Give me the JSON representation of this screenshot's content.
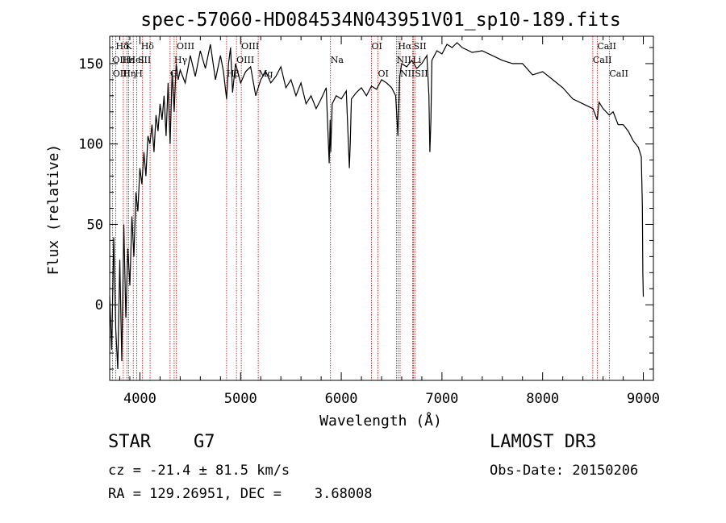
{
  "chart_data": {
    "type": "line",
    "title": "spec-57060-HD084534N043951V01_sp10-189.fits",
    "xlabel": "Wavelength (Å)",
    "ylabel": "Flux (relative)",
    "xlim": [
      3700,
      9100
    ],
    "ylim": [
      -47,
      167
    ],
    "xticks": [
      4000,
      5000,
      6000,
      7000,
      8000,
      9000
    ],
    "yticks": [
      0,
      50,
      100,
      150
    ],
    "grid": false,
    "series": [
      {
        "name": "spectrum",
        "x": [
          3700,
          3720,
          3740,
          3760,
          3780,
          3800,
          3820,
          3840,
          3860,
          3880,
          3900,
          3920,
          3940,
          3960,
          3980,
          4000,
          4020,
          4040,
          4060,
          4080,
          4100,
          4120,
          4140,
          4160,
          4180,
          4200,
          4220,
          4240,
          4260,
          4280,
          4300,
          4320,
          4340,
          4360,
          4380,
          4400,
          4450,
          4500,
          4550,
          4600,
          4650,
          4700,
          4750,
          4800,
          4830,
          4861,
          4880,
          4900,
          4920,
          4950,
          5000,
          5050,
          5100,
          5150,
          5175,
          5200,
          5250,
          5300,
          5350,
          5400,
          5450,
          5500,
          5550,
          5600,
          5650,
          5700,
          5750,
          5800,
          5850,
          5880,
          5890,
          5895,
          5910,
          5950,
          6000,
          6050,
          6080,
          6090,
          6100,
          6150,
          6200,
          6250,
          6300,
          6350,
          6400,
          6450,
          6500,
          6540,
          6563,
          6580,
          6600,
          6650,
          6700,
          6750,
          6800,
          6850,
          6870,
          6880,
          6890,
          6900,
          6950,
          7000,
          7050,
          7100,
          7150,
          7200,
          7300,
          7400,
          7500,
          7600,
          7700,
          7800,
          7900,
          8000,
          8100,
          8200,
          8300,
          8400,
          8500,
          8542,
          8560,
          8600,
          8662,
          8700,
          8750,
          8800,
          8850,
          8900,
          8950,
          8980,
          8990,
          8995,
          9000
        ],
        "values": [
          5,
          -28,
          42,
          -15,
          -40,
          28,
          -35,
          50,
          -8,
          35,
          12,
          55,
          30,
          70,
          58,
          85,
          75,
          95,
          80,
          105,
          100,
          112,
          95,
          118,
          108,
          125,
          115,
          130,
          105,
          138,
          100,
          145,
          120,
          150,
          140,
          146,
          138,
          155,
          142,
          158,
          147,
          162,
          140,
          155,
          145,
          128,
          150,
          160,
          132,
          150,
          138,
          145,
          148,
          130,
          135,
          140,
          145,
          138,
          142,
          148,
          135,
          140,
          130,
          138,
          125,
          130,
          122,
          128,
          135,
          88,
          115,
          95,
          125,
          130,
          128,
          133,
          85,
          102,
          128,
          132,
          135,
          130,
          136,
          134,
          140,
          138,
          135,
          130,
          105,
          142,
          150,
          148,
          152,
          147,
          150,
          155,
          130,
          95,
          115,
          152,
          158,
          156,
          162,
          160,
          163,
          160,
          157,
          158,
          155,
          152,
          150,
          150,
          143,
          145,
          140,
          135,
          128,
          125,
          122,
          115,
          126,
          122,
          118,
          120,
          112,
          112,
          108,
          102,
          98,
          92,
          62,
          20,
          5
        ]
      }
    ],
    "spectral_lines": [
      {
        "name": "Hδ",
        "wavelength": 3760,
        "row": 1
      },
      {
        "name": "OII",
        "wavelength": 3727,
        "row": 2
      },
      {
        "name": "OIII",
        "wavelength": 3730,
        "row": 3
      },
      {
        "name": "Hε",
        "wavelength": 3820,
        "row": 2
      },
      {
        "name": "K",
        "wavelength": 3855,
        "row": 1
      },
      {
        "name": "HeI",
        "wavelength": 3880,
        "row": 2
      },
      {
        "name": "Hη",
        "wavelength": 3830,
        "row": 3
      },
      {
        "name": "H",
        "wavelength": 3950,
        "row": 3
      },
      {
        "name": "Hδ",
        "wavelength": 4010,
        "row": 1
      },
      {
        "name": "SII",
        "wavelength": 3980,
        "row": 2
      },
      {
        "name": "OIII",
        "wavelength": 4365,
        "row": 1
      },
      {
        "name": "Hγ",
        "wavelength": 4340,
        "row": 2
      },
      {
        "name": "G",
        "wavelength": 4300,
        "row": 3
      },
      {
        "name": "OIII",
        "wavelength": 5007,
        "row": 1
      },
      {
        "name": "OIII",
        "wavelength": 4959,
        "row": 2
      },
      {
        "name": "Hβ",
        "wavelength": 4861,
        "row": 3
      },
      {
        "name": "Mg",
        "wavelength": 5175,
        "row": 3
      },
      {
        "name": "Na",
        "wavelength": 5893,
        "row": 2
      },
      {
        "name": "OI",
        "wavelength": 6300,
        "row": 1
      },
      {
        "name": "OI",
        "wavelength": 6364,
        "row": 3
      },
      {
        "name": "Hα",
        "wavelength": 6563,
        "row": 1
      },
      {
        "name": "SII",
        "wavelength": 6716,
        "row": 1
      },
      {
        "name": "NII",
        "wavelength": 6548,
        "row": 2
      },
      {
        "name": "Li",
        "wavelength": 6708,
        "row": 2
      },
      {
        "name": "NII",
        "wavelength": 6584,
        "row": 3
      },
      {
        "name": "SII",
        "wavelength": 6731,
        "row": 3
      },
      {
        "name": "CaII",
        "wavelength": 8542,
        "row": 1
      },
      {
        "name": "CaII",
        "wavelength": 8498,
        "row": 2
      },
      {
        "name": "CaII",
        "wavelength": 8662,
        "row": 3
      }
    ],
    "line_marker_wavelengths": [
      3727,
      3760,
      3835,
      3870,
      3889,
      3934,
      3969,
      4026,
      4101,
      4300,
      4340,
      4363,
      4861,
      4959,
      5007,
      5175,
      5893,
      6300,
      6364,
      6548,
      6563,
      6584,
      6708,
      6716,
      6731,
      8498,
      8542,
      8662
    ]
  },
  "info": {
    "object_type": "STAR    G7",
    "survey": "LAMOST DR3",
    "redshift": "cz = -21.4 ± 81.5 km/s",
    "obs_date": "Obs-Date: 20150206",
    "coordinates": "RA = 129.26951, DEC =    3.68008"
  },
  "colors": {
    "spectrum": "#000000",
    "line_markers": "#cc0000",
    "axes": "#000000"
  }
}
